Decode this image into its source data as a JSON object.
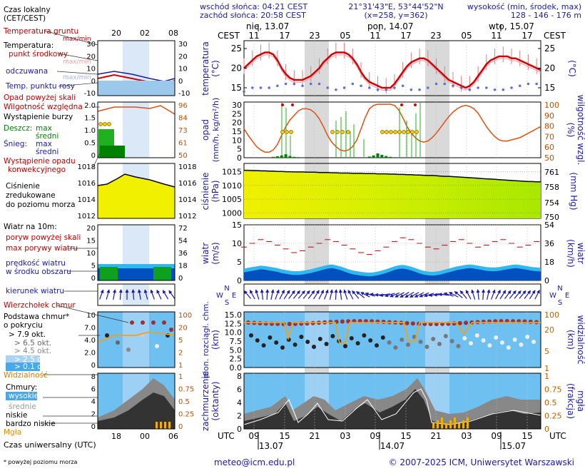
{
  "header": {
    "sunrise": "wschód słońca: 04:21 CEST",
    "sunset": "zachód słońca: 20:58 CEST",
    "coords": "21°31'43\"E, 53°44'52\"N",
    "grid": "(x=258, y=362)",
    "elevation_title": "wysokość (min, środek, max)",
    "elevation_values": "128 - 146 - 176 m"
  },
  "time_axis": {
    "top_label": "CEST",
    "top_hours": [
      "11",
      "17",
      "23",
      "05",
      "11",
      "17",
      "23",
      "05",
      "11",
      "17"
    ],
    "days": [
      "nie, 13.07",
      "pon, 14.07",
      "wto, 15.07"
    ],
    "bottom_label": "UTC",
    "bottom_hours": [
      "09",
      "15",
      "21",
      "03",
      "09",
      "15",
      "21",
      "03",
      "09",
      "15"
    ],
    "bottom_dates": [
      "13.07",
      "14.07",
      "15.07"
    ]
  },
  "legend": {
    "local_time": "Czas lokalny",
    "local_time_zone": "(CET/CEST)",
    "legend_hours_top": [
      "20",
      "02",
      "08"
    ],
    "legend_hours_bottom": [
      "18",
      "00",
      "06"
    ],
    "ground_temp": "Temperatura gruntu",
    "ground_temp_sub": "max/min",
    "temperature": "Temperatura:",
    "mid_point": "punkt środkowy",
    "max_min": "max/min",
    "apparent": "odczuwana",
    "dew_point": "Temp. punktu rosy",
    "precip_over": "Opad powyżej skali",
    "humidity": "Wilgotność względna",
    "storm": "Wystąpienie burzy",
    "rain": "Deszcz:",
    "snow": "Śnieg:",
    "max": "max",
    "mean": "średni",
    "convective": "Wystąpienie opadu",
    "convective2": "konwekcyjnego",
    "pressure1": "Ciśnienie",
    "pressure2": "zredukowane",
    "pressure3": "do poziomu morza",
    "wind_at": "Wiatr na 10m:",
    "gust_over": "poryw powyżej skali",
    "max_gusts": "max porywy wiatru",
    "wind_speed": "prędkość wiatru",
    "wind_area": "w środku obszaru",
    "wind_dir": "kierunek wiatru",
    "cloud_top": "Wierzchołek chmur",
    "cloud_base": "Podstawa chmur*",
    "cloud_coverage": "o pokryciu",
    "octa": [
      "> 7.9 okt.",
      "> 6.5 okt.",
      "> 4.5 okt.",
      "> 2.5 okt.",
      "> 0.1 okt."
    ],
    "visibility": "Widzialność",
    "clouds": "Chmury:",
    "high": "wysokie",
    "middle": "średnie",
    "low": "niskie",
    "very_low": "bardzo niskie",
    "fog": "Mgła",
    "utc": "Czas uniwersalny (UTC)",
    "footnote": "* powyżej poziomu morza"
  },
  "panels": {
    "temperature": {
      "label": "temperatura",
      "unit": "(°C)",
      "ticks": [
        "25",
        "20",
        "15"
      ],
      "legend_ticks": [
        "30",
        "20",
        "10",
        "0",
        "-10"
      ]
    },
    "precip": {
      "label": "opad",
      "unit": "(mm/h, kg/m²/h)",
      "ticks": [
        "30",
        "25",
        "20",
        "15",
        "10",
        "5",
        "0"
      ],
      "right_label": "wilgotność wzgl.",
      "right_unit": "(%)",
      "right_ticks": [
        "100",
        "90",
        "80",
        "70",
        "60",
        "50"
      ],
      "legend_left": [
        "2.0",
        "1.5",
        "1.0",
        "0.5",
        "0"
      ],
      "legend_right": [
        "96",
        "84",
        "73",
        "61",
        "50"
      ]
    },
    "pressure": {
      "label": "ciśnienie",
      "unit": "(hPa)",
      "ticks": [
        "1015",
        "1010",
        "1005",
        "1000"
      ],
      "right_label": "(mm Hg)",
      "right_ticks": [
        "761",
        "758",
        "754",
        "750"
      ],
      "legend_left": [
        "1018",
        "1016",
        "1014",
        "1012"
      ],
      "legend_right": [
        "1018",
        "1016",
        "1014",
        "1012"
      ]
    },
    "wind": {
      "label": "wiatr",
      "unit": "(m/s)",
      "ticks": [
        "15",
        "10",
        "5",
        "0"
      ],
      "right_label": "wiatr",
      "right_unit": "(km/h)",
      "right_ticks": [
        "54",
        "36",
        "18",
        "0"
      ],
      "legend_left": [
        "20",
        "15",
        "10",
        "5",
        "0"
      ],
      "legend_right": [
        "72",
        "54",
        "36",
        "18",
        "0"
      ]
    },
    "wind_dir": {
      "rose_N": "N",
      "rose_W": "W",
      "rose_E": "E",
      "rose_S": "S"
    },
    "clouds": {
      "label": "pion. rozciągł. chm.",
      "unit": "(km)",
      "ticks": [
        "15.0",
        "12.5",
        "10.0",
        "7.5",
        "5.0",
        "2.5",
        "0.0"
      ],
      "right_label": "widzialność",
      "right_unit": "(km)",
      "right_ticks": [
        "100",
        "20",
        "5",
        "1"
      ],
      "legend_left": [
        "10",
        "7.0",
        "4.0",
        "2.0",
        "0"
      ],
      "legend_right": [
        "100",
        "20",
        "5",
        "2",
        "1"
      ]
    },
    "cover": {
      "label": "zachmurzenie",
      "unit": "(oktanty)",
      "ticks": [
        "8",
        "6",
        "4",
        "2",
        "0"
      ],
      "right_label": "mgła",
      "right_unit": "(frakcja)",
      "right_ticks": [
        "1",
        "0.75",
        "0.5",
        "0.25",
        "0"
      ],
      "legend_left": [
        "8",
        "6",
        "4",
        "2",
        "0"
      ],
      "legend_right": [
        "1",
        "0.75",
        "0.5",
        "0.25",
        "0"
      ]
    }
  },
  "chart_data": {
    "type": "meteogram",
    "hours": 72,
    "temperature": [
      20,
      21,
      22,
      23,
      23.5,
      24,
      24,
      23.5,
      22,
      20,
      18.5,
      17.5,
      17,
      17,
      17,
      17.5,
      18,
      19,
      20,
      21.5,
      22.5,
      23.5,
      24,
      24,
      24,
      23.5,
      22.5,
      21,
      19,
      17.5,
      16.5,
      16,
      15.5,
      15,
      15,
      15,
      16,
      17.5,
      19,
      20.5,
      21.5,
      22,
      22.5,
      22.5,
      22,
      21,
      20,
      19,
      18,
      17,
      16.5,
      16,
      15.5,
      15,
      15.5,
      16.5,
      18,
      19.5,
      21,
      22,
      22.5,
      23,
      23,
      23,
      22.5,
      22.5,
      22,
      21.5,
      21,
      20.5,
      20,
      19.5
    ],
    "dew_point": [
      14,
      14.5,
      15,
      15,
      15,
      15.5,
      15,
      15,
      15.5,
      16,
      16,
      16,
      16,
      15.5,
      15.5,
      16,
      16,
      16.5,
      16,
      15.5,
      15,
      15,
      14.5,
      14.5,
      15,
      15.5,
      16,
      16,
      15.5,
      15.5,
      15,
      15,
      14.5,
      14.5,
      14.5,
      14.5,
      15,
      15.5,
      15.5,
      15,
      14.5,
      14.5,
      14.5,
      14.5,
      15,
      15.5,
      16,
      16,
      16,
      16,
      15.5,
      15,
      15,
      14.5,
      14.5,
      15,
      15,
      15,
      15,
      14.5,
      14.5,
      14.5,
      14.5,
      15,
      15,
      15.5,
      15.5,
      15.5,
      16,
      16,
      16,
      16.5
    ],
    "humidity": [
      76,
      70,
      65,
      60,
      57,
      55,
      55,
      57,
      62,
      70,
      78,
      84,
      88,
      92,
      94,
      94,
      93,
      90,
      85,
      78,
      70,
      64,
      60,
      57,
      56,
      57,
      60,
      66,
      76,
      86,
      94,
      97,
      98,
      98,
      98,
      98,
      97,
      93,
      86,
      78,
      72,
      68,
      65,
      64,
      65,
      68,
      72,
      77,
      82,
      87,
      91,
      94,
      96,
      97,
      96,
      94,
      90,
      84,
      78,
      73,
      69,
      66,
      65,
      65,
      66,
      67,
      68,
      70,
      72,
      74,
      76,
      78
    ],
    "pressure": [
      1015.5,
      1015.5,
      1015.4,
      1015.4,
      1015.3,
      1015.3,
      1015.2,
      1015.2,
      1015.1,
      1015.1,
      1015.0,
      1015.0,
      1014.9,
      1014.9,
      1014.9,
      1014.8,
      1014.8,
      1014.8,
      1014.7,
      1014.7,
      1014.7,
      1014.6,
      1014.6,
      1014.5,
      1014.5,
      1014.5,
      1014.4,
      1014.4,
      1014.4,
      1014.3,
      1014.3,
      1014.3,
      1014.2,
      1014.2,
      1014.2,
      1014.1,
      1014.1,
      1014.0,
      1014.0,
      1013.9,
      1013.9,
      1013.8,
      1013.8,
      1013.7,
      1013.6,
      1013.6,
      1013.5,
      1013.4,
      1013.3,
      1013.3,
      1013.2,
      1013.1,
      1013.0,
      1012.9,
      1012.8,
      1012.7,
      1012.6,
      1012.5,
      1012.4,
      1012.3,
      1012.2,
      1012.1,
      1012.0,
      1011.9,
      1011.8,
      1011.7,
      1011.6,
      1011.5,
      1011.4,
      1011.4,
      1011.3,
      1011.3
    ],
    "wind_speed": [
      2.2,
      2.4,
      2.6,
      2.8,
      3.0,
      2.9,
      2.7,
      2.5,
      2.3,
      2.0,
      1.8,
      1.6,
      1.5,
      1.5,
      1.6,
      1.8,
      2.0,
      2.3,
      2.6,
      2.9,
      3.2,
      3.3,
      3.1,
      2.8,
      2.4,
      2.0,
      1.7,
      1.5,
      1.3,
      1.2,
      1.1,
      1.2,
      1.4,
      1.7,
      2.0,
      2.4,
      2.8,
      3.1,
      3.2,
      3.0,
      2.7,
      2.3,
      1.9,
      1.6,
      1.4,
      1.3,
      1.4,
      1.6,
      1.9,
      2.2,
      2.5,
      2.8,
      3.0,
      3.2,
      3.3,
      3.2,
      3.0,
      2.8,
      2.6,
      2.5,
      2.5,
      2.6,
      2.8,
      3.0,
      3.2,
      3.3,
      3.2,
      3.0,
      2.8,
      2.6,
      2.5,
      2.4
    ],
    "max_gusts": [
      9,
      9.5,
      10,
      10.5,
      11,
      11,
      10.5,
      10,
      9.5,
      9,
      8.5,
      8,
      7.5,
      7.5,
      8,
      8.5,
      9,
      9.5,
      10,
      10.5,
      11,
      11,
      10.5,
      10,
      9.5,
      9,
      8.5,
      8,
      7.5,
      7,
      7,
      7.5,
      8,
      8.5,
      9,
      10,
      10.5,
      11,
      11.5,
      11.5,
      11,
      10.5,
      10,
      9.5,
      9,
      8.5,
      8.5,
      9,
      9.5,
      10,
      10.5,
      11,
      11,
      10.5,
      10,
      9.5,
      9,
      9,
      9.5,
      10,
      10.5,
      11,
      11,
      10.5,
      10,
      9.5,
      9,
      9,
      9.5,
      10,
      10.5,
      11
    ],
    "precip_mean": [
      0,
      0,
      0,
      0,
      0,
      0,
      0,
      0.3,
      0.5,
      0.8,
      1.2,
      0.6,
      0.3,
      0.2,
      0,
      0,
      0,
      0,
      0,
      0,
      0,
      0,
      0,
      0,
      0,
      0,
      0,
      0,
      0,
      0,
      0.4,
      0.8,
      1.5,
      1.0,
      0.6,
      0.3,
      0,
      0,
      0,
      0,
      0,
      0,
      0,
      0,
      0,
      0,
      0,
      0,
      0,
      0,
      0,
      0,
      0,
      0,
      0,
      0,
      0,
      0,
      0,
      0,
      0,
      0,
      0,
      0,
      0,
      0,
      0,
      0,
      0,
      0,
      0,
      0
    ]
  }
}
